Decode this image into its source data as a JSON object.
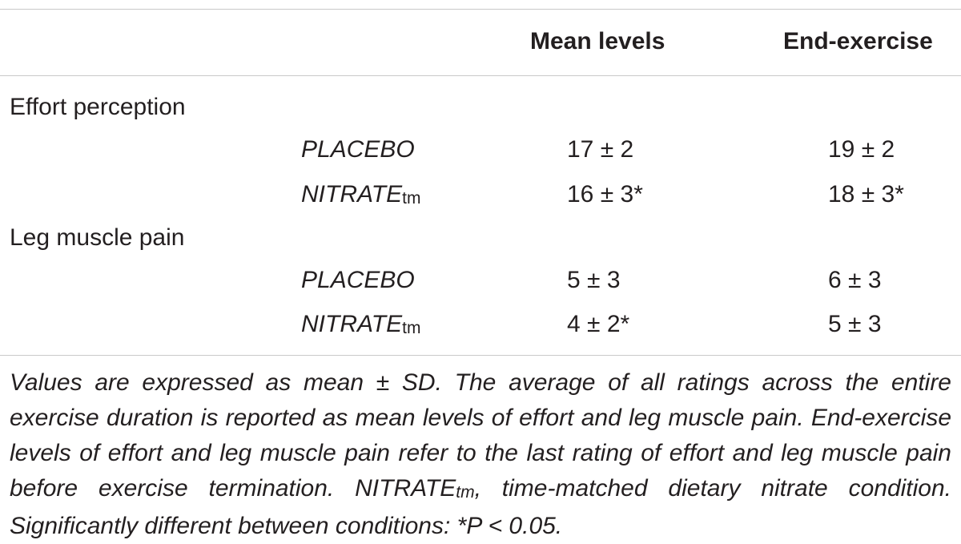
{
  "table": {
    "headers": {
      "mean_levels": "Mean levels",
      "end_exercise": "End-exercise"
    },
    "sections": [
      {
        "label": "Effort perception",
        "rows": [
          {
            "condition": "PLACEBO",
            "condition_sub": "",
            "mean": "17 ± 2",
            "end": "19 ± 2"
          },
          {
            "condition": "NITRATE",
            "condition_sub": "tm",
            "mean": "16 ± 3*",
            "end": "18 ± 3*"
          }
        ]
      },
      {
        "label": "Leg muscle pain",
        "rows": [
          {
            "condition": "PLACEBO",
            "condition_sub": "",
            "mean": "5 ± 3",
            "end": "6 ± 3"
          },
          {
            "condition": "NITRATE",
            "condition_sub": "tm",
            "mean": "4 ± 2*",
            "end": "5 ± 3"
          }
        ]
      }
    ]
  },
  "footnote": {
    "part1": "Values are expressed as mean ± SD. The average of all ratings across the entire exercise duration is reported as mean levels of effort and leg muscle pain. End-exercise levels of effort and leg muscle pain refer to the last rating of effort and leg muscle pain before exercise termination. NITRATE",
    "sub": "tm",
    "part2": ", time-matched dietary nitrate condition. Significantly different between conditions: *P < 0.05."
  }
}
